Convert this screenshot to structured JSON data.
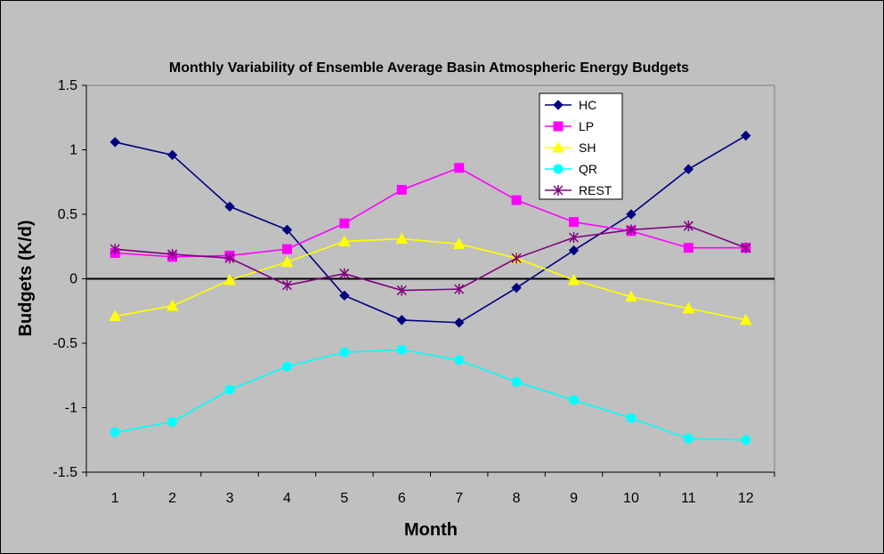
{
  "chart_data": {
    "type": "line",
    "title": "Monthly Variability of Ensemble Average Basin Atmospheric Energy Budgets",
    "xlabel": "Month",
    "ylabel": "Budgets (K/d)",
    "categories": [
      "1",
      "2",
      "3",
      "4",
      "5",
      "6",
      "7",
      "8",
      "9",
      "10",
      "11",
      "12"
    ],
    "ylim": [
      -1.5,
      1.5
    ],
    "yticks": [
      "1.5",
      "1",
      "0.5",
      "0",
      "-0.5",
      "-1",
      "-1.5"
    ],
    "grid": false,
    "zero_line": true,
    "legend_position": "top-right",
    "plot_background": "#c0c0c0",
    "series": [
      {
        "name": "HC",
        "color": "#000080",
        "marker": "diamond",
        "values": [
          1.06,
          0.96,
          0.56,
          0.38,
          -0.13,
          -0.32,
          -0.34,
          -0.07,
          0.22,
          0.5,
          0.85,
          1.11
        ]
      },
      {
        "name": "LP",
        "color": "#ff00ff",
        "marker": "square",
        "values": [
          0.2,
          0.17,
          0.18,
          0.23,
          0.43,
          0.69,
          0.86,
          0.61,
          0.44,
          0.37,
          0.24,
          0.24
        ]
      },
      {
        "name": "SH",
        "color": "#ffff00",
        "marker": "triangle",
        "values": [
          -0.29,
          -0.21,
          -0.01,
          0.13,
          0.29,
          0.31,
          0.27,
          0.16,
          -0.01,
          -0.14,
          -0.23,
          -0.32
        ]
      },
      {
        "name": "QR",
        "color": "#00ffff",
        "marker": "circle",
        "values": [
          -1.19,
          -1.11,
          -0.86,
          -0.68,
          -0.57,
          -0.55,
          -0.63,
          -0.8,
          -0.94,
          -1.08,
          -1.24,
          -1.25
        ]
      },
      {
        "name": "REST",
        "color": "#800080",
        "marker": "asterisk",
        "values": [
          0.23,
          0.19,
          0.16,
          -0.05,
          0.04,
          -0.09,
          -0.08,
          0.16,
          0.32,
          0.38,
          0.41,
          0.24
        ]
      }
    ]
  }
}
